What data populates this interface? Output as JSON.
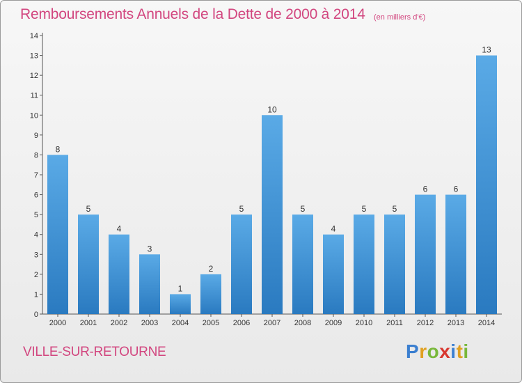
{
  "title": "Remboursements Annuels de la Dette de 2000 à 2014",
  "subtitle": "(en milliers d'€)",
  "commune": "VILLE-SUR-RETOURNE",
  "logo": {
    "letters": [
      "P",
      "r",
      "o",
      "x",
      "i",
      "t",
      "i"
    ],
    "colors": [
      "#3b7fd0",
      "#e0a020",
      "#78b83a",
      "#d8372f",
      "#3b7fd0",
      "#e0a020",
      "#78b83a"
    ]
  },
  "colors": {
    "bar_light": "#5aaae6",
    "bar_dark": "#2a7ac0",
    "title": "#d2467f"
  },
  "chart_data": {
    "type": "bar",
    "categories": [
      "2000",
      "2001",
      "2002",
      "2003",
      "2004",
      "2005",
      "2006",
      "2007",
      "2008",
      "2009",
      "2010",
      "2011",
      "2012",
      "2013",
      "2014"
    ],
    "values": [
      8,
      5,
      4,
      3,
      1,
      2,
      5,
      10,
      5,
      4,
      5,
      5,
      6,
      6,
      13
    ],
    "ylim": [
      0,
      14
    ],
    "yticks": [
      0,
      1,
      2,
      3,
      4,
      5,
      6,
      7,
      8,
      9,
      10,
      11,
      12,
      13,
      14
    ],
    "grid": false,
    "data_labels": true
  }
}
